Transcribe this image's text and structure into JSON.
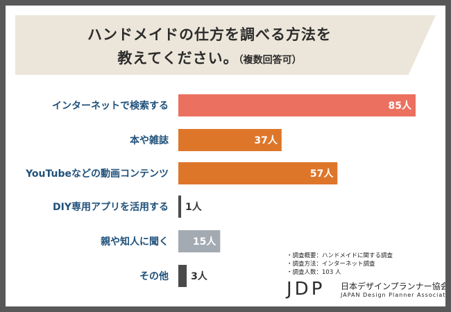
{
  "title": {
    "line1": "ハンドメイドの仕方を調べる方法を",
    "line2": "教えてください。",
    "note": "（複数回答可）"
  },
  "chart_data": {
    "type": "bar",
    "orientation": "horizontal",
    "unit": "人",
    "categories": [
      "インターネットで検索する",
      "本や雑誌",
      "YouTubeなどの動画コンテンツ",
      "DIY専用アプリを活用する",
      "親や知人に聞く",
      "その他"
    ],
    "values": [
      85,
      37,
      57,
      1,
      15,
      3
    ],
    "value_labels": [
      "85人",
      "37人",
      "57人",
      "1人",
      "15人",
      "3人"
    ],
    "colors": [
      "#ec705f",
      "#de762a",
      "#de762a",
      "#4a4a4a",
      "#a3aab2",
      "#4a4a4a"
    ],
    "xlim": [
      0,
      85
    ]
  },
  "survey": {
    "overview": "調査概要：ハンドメイドに関する調査",
    "method": "調査方法：インターネット調査",
    "respondents": "調査人数：103 人"
  },
  "logo": {
    "mark": "JDP",
    "name_ja": "日本デザインプランナー協会",
    "name_en": "JAPAN Design Planner Association"
  }
}
